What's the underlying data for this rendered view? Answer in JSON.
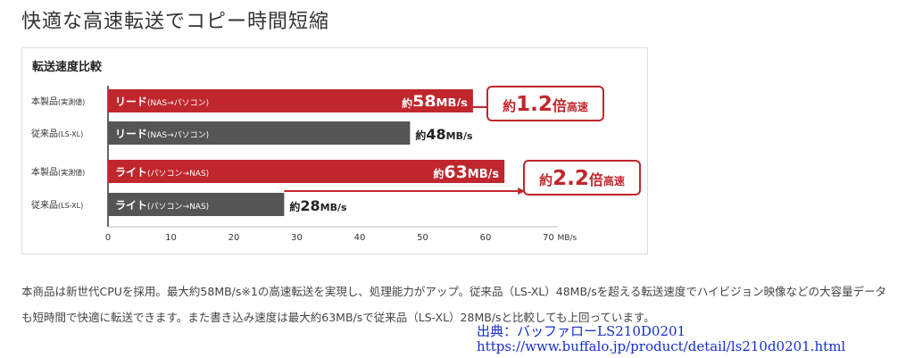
{
  "page": {
    "heading": "快適な高速転送でコピー時間短縮",
    "description": "本商品は新世代CPUを採用。最大約58MB/s※1の高速転送を実現し、処理能力がアップ。従来品（LS-XL）48MB/sを超える転送速度でハイビジョン映像などの大容量データも短時間で快適に転送できます。また書き込み速度は最大約63MB/sで従来品（LS-XL）28MB/sと比較しても上回っています。",
    "source_line1": "出典：バッファローLS210D0201",
    "source_line2": "https://www.buffalo.jp/product/detail/ls210d0201.html"
  },
  "chart_data": {
    "type": "bar",
    "orientation": "horizontal",
    "title": "転送速度比較",
    "unit": "MB/s",
    "xlim": [
      0,
      70
    ],
    "x_ticks": [
      0,
      10,
      20,
      30,
      40,
      50,
      60,
      70
    ],
    "bars": [
      {
        "row_label": "本製品",
        "row_sub": "(実測値)",
        "label": "リード",
        "sub": "(NAS→パソコン)",
        "value": 58,
        "value_prefix": "約",
        "value_number": "58",
        "value_unit": "MB/s",
        "color": "#c0272d"
      },
      {
        "row_label": "従来品",
        "row_sub": "(LS-XL)",
        "label": "リード",
        "sub": "(NAS→パソコン)",
        "value": 48,
        "value_prefix": "約",
        "value_number": "48",
        "value_unit": "MB/s",
        "color": "#555555"
      },
      {
        "row_label": "本製品",
        "row_sub": "(実測値)",
        "label": "ライト",
        "sub": "(パソコン→NAS)",
        "value": 63,
        "value_prefix": "約",
        "value_number": "63",
        "value_unit": "MB/s",
        "color": "#c0272d"
      },
      {
        "row_label": "従来品",
        "row_sub": "(LS-XL)",
        "label": "ライト",
        "sub": "(パソコン→NAS)",
        "value": 28,
        "value_prefix": "約",
        "value_number": "28",
        "value_unit": "MB/s",
        "color": "#555555"
      }
    ],
    "callouts": [
      {
        "prefix": "約",
        "number": "1.2",
        "suffix": "倍",
        "tail": "高速",
        "from_value": 48,
        "to_value": 58
      },
      {
        "prefix": "約",
        "number": "2.2",
        "suffix": "倍",
        "tail": "高速",
        "from_value": 28,
        "to_value": 63
      }
    ],
    "accent_color": "#c0272d",
    "grid": false,
    "legend": "none"
  }
}
